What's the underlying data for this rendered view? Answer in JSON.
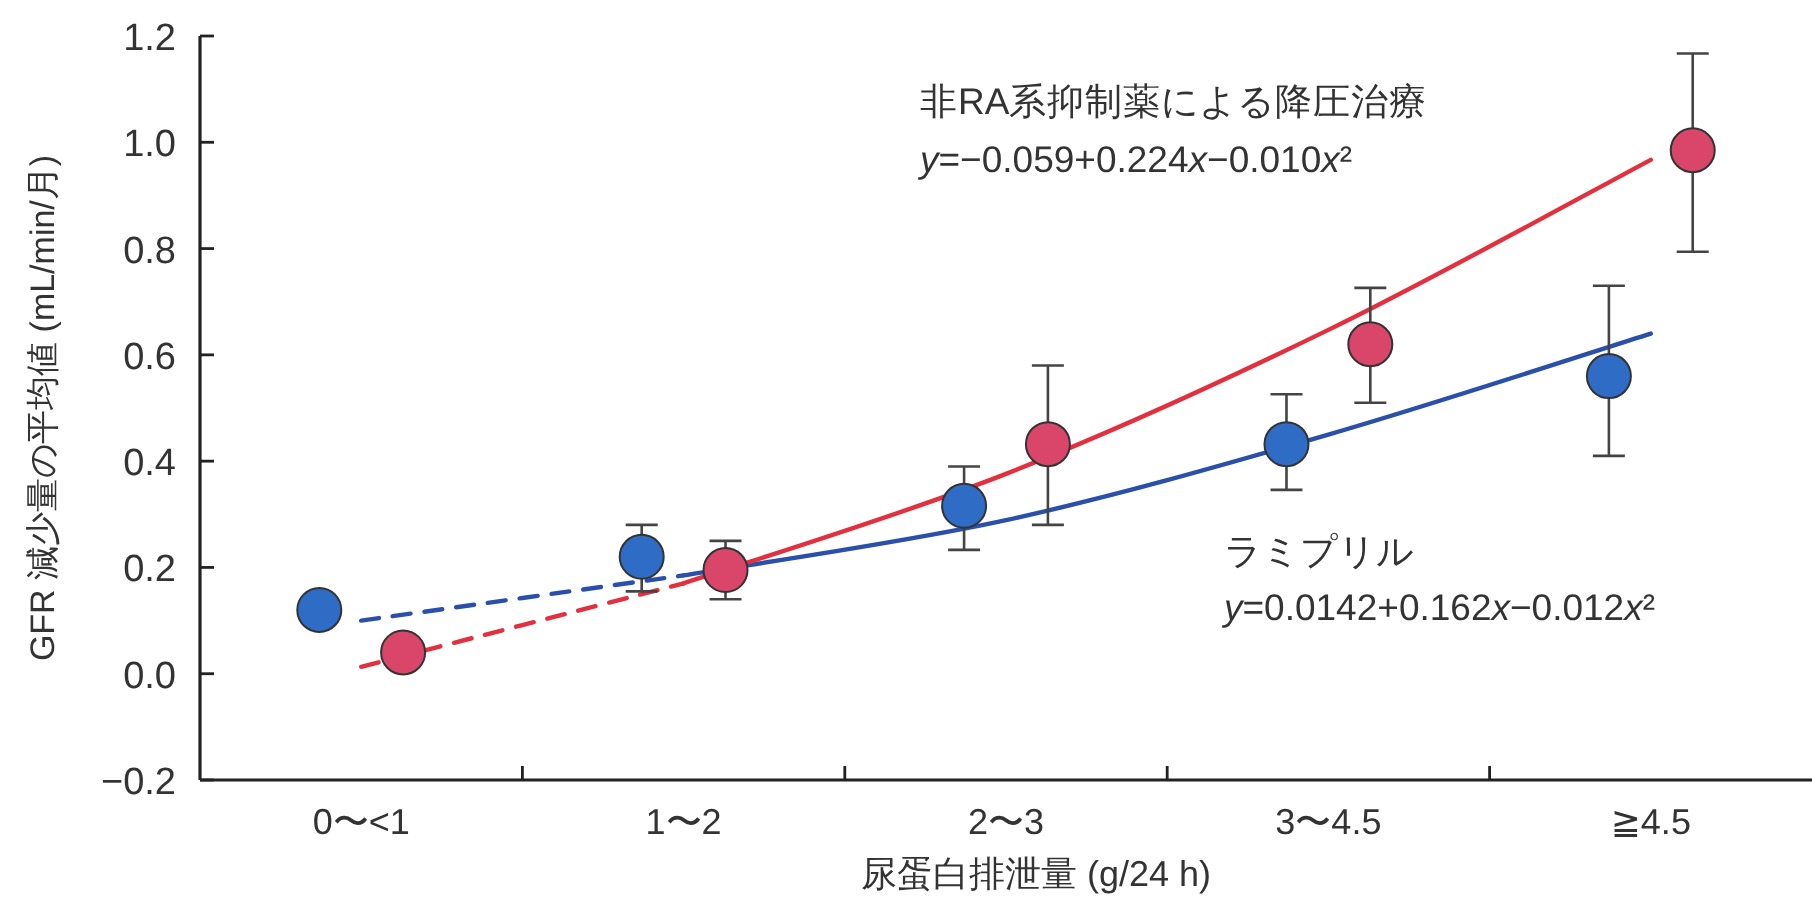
{
  "chart_data": {
    "type": "scatter",
    "xlabel": "尿蛋白排泄量 (g/24 h)",
    "ylabel": "GFR 減少量の平均値 (mL/min/月)",
    "categories": [
      "0〜<1",
      "1〜2",
      "2〜3",
      "3〜4.5",
      "≧4.5"
    ],
    "ylim": [
      -0.2,
      1.2
    ],
    "yticks": [
      {
        "value": -0.2,
        "label": "−0.2"
      },
      {
        "value": 0,
        "label": "0.0"
      },
      0.2,
      0.4,
      0.6,
      0.8,
      {
        "value": 1,
        "label": "1.0"
      },
      1.2
    ],
    "marker": "circle",
    "series": [
      {
        "color": "#2f6cc6",
        "values": [
          0.12,
          0.22,
          0.316,
          0.432,
          0.56
        ],
        "errors": [
          null,
          [
            0.155,
            0.28
          ],
          [
            0.233,
            0.39
          ],
          [
            0.346,
            0.526
          ],
          [
            0.41,
            0.73
          ]
        ]
      },
      {
        "color": "#d9466a",
        "values": [
          0.04,
          0.195,
          0.432,
          0.62,
          0.985
        ],
        "errors": [
          null,
          [
            0.14,
            0.25
          ],
          [
            0.28,
            0.58
          ],
          [
            0.51,
            0.726
          ],
          [
            0.794,
            1.167
          ]
        ]
      },
      {
        "type": "line",
        "marker": "none",
        "color": "#2a50aa",
        "line_style": "dashed",
        "x": [
          "0〜<1",
          "1〜2"
        ],
        "values": [
          0.1,
          0.185
        ]
      },
      {
        "type": "line",
        "marker": "none",
        "color": "#2a50aa",
        "line_style": "solid",
        "x": [
          "1〜2",
          "2〜3",
          "3〜4.5",
          "≧4.5"
        ],
        "values": [
          0.185,
          0.289,
          0.45,
          0.64
        ]
      },
      {
        "type": "line",
        "marker": "none",
        "color": "#e2303f",
        "line_style": "dashed",
        "x": [
          "0〜<1",
          "1〜2"
        ],
        "values": [
          0.013,
          0.17
        ]
      },
      {
        "type": "line",
        "marker": "none",
        "color": "#e2303f",
        "line_style": "solid",
        "x": [
          "1〜2",
          "2〜3",
          "3〜4.5",
          "≧4.5"
        ],
        "values": [
          0.17,
          0.376,
          0.647,
          0.967
        ]
      }
    ],
    "annotations": [
      "非RA系抑制薬による降圧治療",
      "y=−0.059+0.224x−0.010x²",
      "ラミプリル",
      "y=0.0142+0.162x−0.012x²"
    ]
  }
}
